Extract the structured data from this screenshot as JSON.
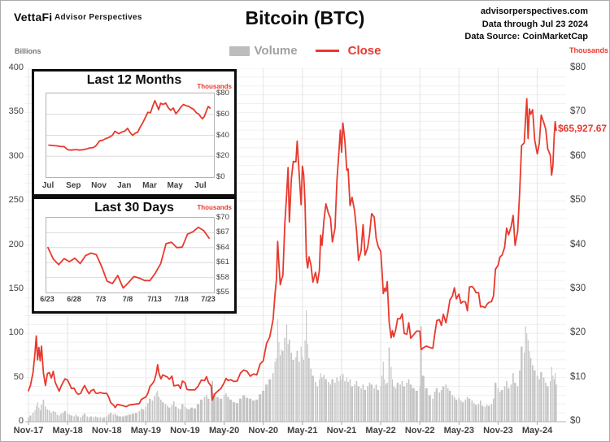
{
  "header": {
    "logo": "VettaFi",
    "logo_sub": "Advisor Perspectives",
    "title": "Bitcoin (BTC)",
    "source_lines": [
      "advisorperspectives.com",
      "Data through Jul 23 2024",
      "Data Source: CoinMarketCap"
    ]
  },
  "legend": {
    "volume_label": "Volume",
    "close_label": "Close"
  },
  "colors": {
    "close": "#e8392d",
    "volume": "#c4c4c4",
    "volume_swatch": "#bdbdbd",
    "volume_text": "#a1a1a1",
    "annotation": "#e8392d",
    "axis_text": "#3f3f3f"
  },
  "chart_data": [
    {
      "id": "main",
      "type": "line+bar",
      "title": "Bitcoin (BTC)",
      "last_price_label": "$65,927.67",
      "legend_position": "top",
      "grid": true,
      "x_tick_labels": [
        "Nov-17",
        "May-18",
        "Nov-18",
        "May-19",
        "Nov-19",
        "May-20",
        "Nov-20",
        "May-21",
        "Nov-21",
        "May-22",
        "Nov-22",
        "May-23",
        "Nov-23",
        "May-24"
      ],
      "left_axis": {
        "label": "Billions",
        "max": 400,
        "tick_values": [
          0,
          50,
          100,
          150,
          200,
          250,
          300,
          350,
          400
        ],
        "tick_labels": [
          "0",
          "50",
          "100",
          "150",
          "200",
          "250",
          "300",
          "350",
          "400"
        ]
      },
      "right_axis": {
        "label": "Thousands",
        "max": 80,
        "tick_values": [
          0,
          10,
          20,
          30,
          40,
          50,
          60,
          70,
          80
        ],
        "tick_labels": [
          "$0",
          "$10",
          "$20",
          "$30",
          "$40",
          "$50",
          "$60",
          "$70",
          "$80"
        ]
      },
      "close": {
        "name": "Close",
        "unit": "USD thousands",
        "x_unit": "months since Nov-2017",
        "t": [
          0,
          0.3,
          0.7,
          1,
          1.2,
          1.4,
          1.6,
          1.8,
          2,
          2.3,
          2.6,
          2.9,
          3.2,
          3.5,
          3.8,
          4.1,
          4.4,
          4.7,
          5,
          5.3,
          5.6,
          6,
          6.3,
          6.6,
          7,
          7.3,
          7.6,
          8,
          8.3,
          8.6,
          9,
          9.3,
          9.6,
          10,
          10.3,
          10.6,
          11,
          11.3,
          11.6,
          12,
          12.3,
          12.6,
          13,
          13.3,
          13.6,
          14,
          14.5,
          15,
          15.5,
          16,
          16.5,
          17,
          17.3,
          17.6,
          18,
          18.3,
          18.6,
          19,
          19.3,
          19.6,
          19.8,
          20,
          20.3,
          20.6,
          21,
          21.3,
          21.6,
          22,
          22.3,
          22.6,
          23,
          23.3,
          23.6,
          24,
          24.3,
          24.6,
          25,
          25.5,
          26,
          26.5,
          27,
          27.3,
          27.6,
          28,
          28.2,
          28.5,
          29,
          29.5,
          30,
          30.3,
          30.6,
          31,
          31.5,
          32,
          32.5,
          33,
          33.5,
          34,
          34.5,
          35,
          35.5,
          36,
          36.5,
          37,
          37.5,
          37.8,
          38,
          38.2,
          38.4,
          38.6,
          38.8,
          39,
          39.3,
          39.6,
          39.8,
          40,
          40.3,
          40.6,
          41,
          41.2,
          41.5,
          41.8,
          42,
          42.2,
          42.4,
          42.6,
          42.8,
          43,
          43.3,
          43.6,
          44,
          44.3,
          44.6,
          44.8,
          45,
          45.3,
          45.6,
          46,
          46.3,
          46.6,
          47,
          47.3,
          47.6,
          47.8,
          48,
          48.2,
          48.5,
          48.8,
          49,
          49.3,
          49.6,
          50,
          50.3,
          50.6,
          51,
          51.3,
          51.6,
          52,
          52.3,
          52.6,
          53,
          53.3,
          53.6,
          54,
          54.2,
          54.4,
          54.6,
          54.8,
          55,
          55.3,
          55.6,
          55.8,
          56,
          56.3,
          56.6,
          57,
          57.3,
          57.6,
          58,
          58.3,
          58.6,
          59,
          59.5,
          60,
          60.2,
          60.5,
          61,
          61.5,
          62,
          62.3,
          62.6,
          63,
          63.3,
          63.6,
          64,
          64.3,
          64.6,
          65,
          65.3,
          65.6,
          66,
          66.3,
          66.6,
          67,
          67.3,
          67.6,
          68,
          68.3,
          68.6,
          69,
          69.3,
          69.6,
          70,
          70.3,
          70.6,
          71,
          71.3,
          71.6,
          72,
          72.3,
          72.6,
          73,
          73.3,
          73.6,
          74,
          74.3,
          74.6,
          75,
          75.3,
          75.6,
          76,
          76.2,
          76.4,
          76.6,
          76.8,
          77,
          77.3,
          77.6,
          78,
          78.3,
          78.6,
          79,
          79.3,
          79.6,
          80,
          80.2,
          80.4,
          80.6,
          80.75,
          80.9
        ],
        "v": [
          7,
          8.2,
          11.1,
          15.5,
          19.4,
          14,
          16.8,
          13.8,
          17.1,
          11,
          8.2,
          10.9,
          11.1,
          9.9,
          11.4,
          8.9,
          7.9,
          6.9,
          8,
          8.9,
          9.7,
          9.4,
          8.5,
          7.5,
          7.6,
          6.7,
          6.2,
          6.4,
          7.4,
          8.2,
          7,
          6.3,
          7,
          7.3,
          6.5,
          6.4,
          6.6,
          6.5,
          6.4,
          6.4,
          5.6,
          4.3,
          3.8,
          3.2,
          3.9,
          3.8,
          3.6,
          3.4,
          3.8,
          3.9,
          4,
          4.1,
          5,
          5.3,
          5.6,
          6.4,
          7.9,
          8.6,
          9.3,
          11,
          12.9,
          11,
          9.7,
          10.6,
          10.3,
          10.1,
          9.6,
          10.3,
          8.1,
          8.2,
          8.3,
          7.5,
          9.2,
          8.8,
          7.3,
          7.2,
          7.2,
          7.2,
          8,
          9.4,
          9.3,
          10.2,
          8.8,
          8.1,
          4.9,
          6.2,
          6.9,
          7.5,
          8.8,
          9.8,
          9.3,
          9.5,
          9.1,
          9.2,
          11,
          11.7,
          11.4,
          10.3,
          10.8,
          10.6,
          13,
          13.8,
          17.7,
          19.2,
          23.2,
          29,
          32,
          40.8,
          35.5,
          31,
          32.2,
          33.1,
          44.8,
          52,
          57.5,
          45.2,
          54.9,
          58.9,
          58.8,
          63.5,
          56.2,
          49.1,
          57.8,
          55.9,
          49.7,
          37,
          34.8,
          37.3,
          35.5,
          31.6,
          33.8,
          31.4,
          34.3,
          42.2,
          39.9,
          45.6,
          49.3,
          47.1,
          46.1,
          40.7,
          43.8,
          54.7,
          61.3,
          66,
          61,
          67.6,
          63.6,
          56.9,
          57.2,
          48.9,
          50.8,
          47.7,
          43.1,
          36.5,
          38.7,
          44.6,
          37.7,
          39.4,
          42.4,
          47.1,
          46.3,
          41.5,
          39.7,
          38.5,
          34.1,
          29,
          30.2,
          29.5,
          31.7,
          22.5,
          19,
          20.6,
          19.2,
          20.8,
          23.3,
          23.3,
          24.4,
          20,
          19.8,
          22.4,
          18.9,
          19.6,
          20.5,
          20.5,
          16.3,
          16.7,
          17.1,
          16.8,
          16.6,
          19.9,
          22.9,
          23.1,
          21.8,
          24.3,
          22.4,
          24.7,
          27.5,
          28.5,
          30.3,
          27.8,
          28.9,
          26.8,
          27.2,
          27.1,
          25.1,
          30.5,
          30.6,
          30.1,
          29.2,
          29.2,
          26,
          26.1,
          25.8,
          26.6,
          27,
          27.2,
          28.5,
          34.5,
          35.4,
          37.3,
          37.7,
          39.5,
          43.8,
          42.3,
          44.2,
          46.7,
          39.9,
          43.1,
          51.8,
          62.5,
          63.1,
          68.3,
          73.1,
          64.1,
          70.8,
          69.6,
          70.6,
          63.8,
          60.6,
          62.9,
          69.4,
          67.7,
          66.2,
          61.8,
          60.3,
          55.8,
          58,
          64.7,
          67.9,
          65.93
        ]
      },
      "volume": {
        "name": "Volume",
        "unit": "USD billions",
        "t_ref": "close",
        "v": [
          5,
          7,
          10,
          13,
          18,
          22,
          16,
          13,
          19,
          25,
          17,
          14,
          13,
          10,
          12,
          11,
          8,
          7,
          9,
          10,
          12,
          9,
          8,
          7,
          6,
          8,
          6,
          5,
          7,
          9,
          6,
          5,
          6,
          5,
          6,
          5,
          5,
          4,
          5,
          6,
          8,
          10,
          8,
          9,
          7,
          6,
          6,
          7,
          8,
          9,
          10,
          12,
          15,
          14,
          17,
          21,
          26,
          24,
          29,
          33,
          35,
          28,
          25,
          22,
          20,
          18,
          16,
          19,
          23,
          17,
          15,
          14,
          20,
          17,
          15,
          14,
          16,
          15,
          20,
          25,
          28,
          30,
          26,
          34,
          46,
          32,
          28,
          26,
          30,
          32,
          28,
          25,
          22,
          21,
          26,
          30,
          27,
          26,
          24,
          25,
          31,
          35,
          42,
          48,
          55,
          68,
          72,
          116,
          90,
          75,
          82,
          80,
          95,
          110,
          88,
          93,
          78,
          70,
          73,
          80,
          68,
          85,
          74,
          70,
          92,
          126,
          88,
          72,
          60,
          52,
          45,
          40,
          48,
          55,
          50,
          53,
          48,
          45,
          42,
          48,
          44,
          50,
          46,
          52,
          48,
          54,
          46,
          50,
          45,
          48,
          40,
          42,
          46,
          40,
          38,
          42,
          36,
          40,
          44,
          42,
          38,
          42,
          36,
          40,
          52,
          68,
          48,
          42,
          44,
          84,
          62,
          48,
          40,
          38,
          44,
          42,
          46,
          40,
          44,
          48,
          42,
          38,
          35,
          40,
          108,
          52,
          38,
          30,
          26,
          34,
          38,
          33,
          36,
          40,
          42,
          38,
          35,
          30,
          28,
          25,
          27,
          24,
          22,
          25,
          28,
          26,
          24,
          21,
          19,
          20,
          24,
          18,
          17,
          19,
          18,
          20,
          26,
          44,
          38,
          34,
          36,
          40,
          46,
          38,
          42,
          55,
          44,
          40,
          58,
          85,
          78,
          108,
          100,
          92,
          80,
          72,
          64,
          58,
          52,
          48,
          56,
          50,
          44,
          40,
          46,
          62,
          52,
          48,
          55,
          42
        ]
      }
    },
    {
      "id": "last-12-months",
      "type": "line",
      "title": "Last 12 Months",
      "right_axis": {
        "label": "Thousands",
        "min": 0,
        "max": 80,
        "tick_values": [
          0,
          20,
          40,
          60,
          80
        ],
        "tick_labels": [
          "$0",
          "$20",
          "$40",
          "$60",
          "$80"
        ]
      },
      "x_tick_labels": [
        "Jul",
        "Sep",
        "Nov",
        "Jan",
        "Mar",
        "May",
        "Jul"
      ],
      "x_tick_t": [
        0,
        2,
        4,
        6,
        8,
        10,
        12
      ],
      "series": {
        "name": "Close",
        "unit": "USD thousands",
        "x_unit": "months since Jul-2023",
        "t": [
          0,
          0.3,
          0.6,
          0.9,
          1.2,
          1.5,
          1.8,
          2.1,
          2.4,
          2.7,
          3,
          3.2,
          3.5,
          3.7,
          4,
          4.2,
          4.5,
          4.7,
          5,
          5.2,
          5.5,
          5.7,
          6,
          6.2,
          6.4,
          6.6,
          6.8,
          7,
          7.2,
          7.4,
          7.6,
          7.8,
          8,
          8.2,
          8.35,
          8.5,
          8.65,
          8.8,
          9,
          9.2,
          9.4,
          9.6,
          9.8,
          10,
          10.2,
          10.4,
          10.6,
          10.8,
          11,
          11.2,
          11.4,
          11.6,
          11.8,
          12,
          12.1,
          12.25,
          12.4,
          12.55,
          12.7
        ],
        "v": [
          30.6,
          30.2,
          29.9,
          29.3,
          29.2,
          26.1,
          25.9,
          26.3,
          25.9,
          26.2,
          27,
          27.9,
          28.3,
          29.9,
          34.7,
          35.1,
          36.9,
          37.8,
          40,
          43.8,
          41.5,
          42.9,
          44.2,
          46.7,
          42.6,
          39.9,
          42,
          43.1,
          48,
          52.1,
          57,
          62,
          61.5,
          68.5,
          73.1,
          68.8,
          64.5,
          70.6,
          69.5,
          70.8,
          66.5,
          63.9,
          66,
          60.6,
          63.4,
          67,
          69.4,
          68.3,
          67.8,
          66.1,
          64.9,
          61.7,
          60.3,
          57,
          55.8,
          58.1,
          63,
          67.5,
          66
        ]
      }
    },
    {
      "id": "last-30-days",
      "type": "line",
      "title": "Last 30 Days",
      "right_axis": {
        "label": "Thousands",
        "min": 55,
        "max": 70,
        "tick_values": [
          55,
          58,
          61,
          64,
          67,
          70
        ],
        "tick_labels": [
          "$55",
          "$58",
          "$61",
          "$64",
          "$67",
          "$70"
        ]
      },
      "x_tick_labels": [
        "6/23",
        "6/28",
        "7/3",
        "7/8",
        "7/13",
        "7/18",
        "7/23"
      ],
      "x_tick_t": [
        0,
        5,
        10,
        15,
        20,
        25,
        30
      ],
      "series": {
        "name": "Close",
        "unit": "USD thousands",
        "x_unit": "days since Jun-23-2024",
        "t": [
          0,
          1,
          2,
          3,
          4,
          5,
          6,
          7,
          8,
          9,
          10,
          11,
          12,
          13,
          14,
          15,
          16,
          17,
          18,
          19,
          20,
          21,
          22,
          23,
          24,
          25,
          26,
          27,
          28,
          29,
          30
        ],
        "v": [
          64,
          61.7,
          60.6,
          61.8,
          61.2,
          61.9,
          60.8,
          62.4,
          62.9,
          62.6,
          60.2,
          57.3,
          56.8,
          58.4,
          55.9,
          57,
          58.2,
          57.9,
          57.4,
          57.4,
          58.9,
          60.8,
          64.8,
          65.1,
          64,
          64.1,
          66.7,
          67.2,
          68.1,
          67.4,
          65.9
        ]
      }
    }
  ]
}
